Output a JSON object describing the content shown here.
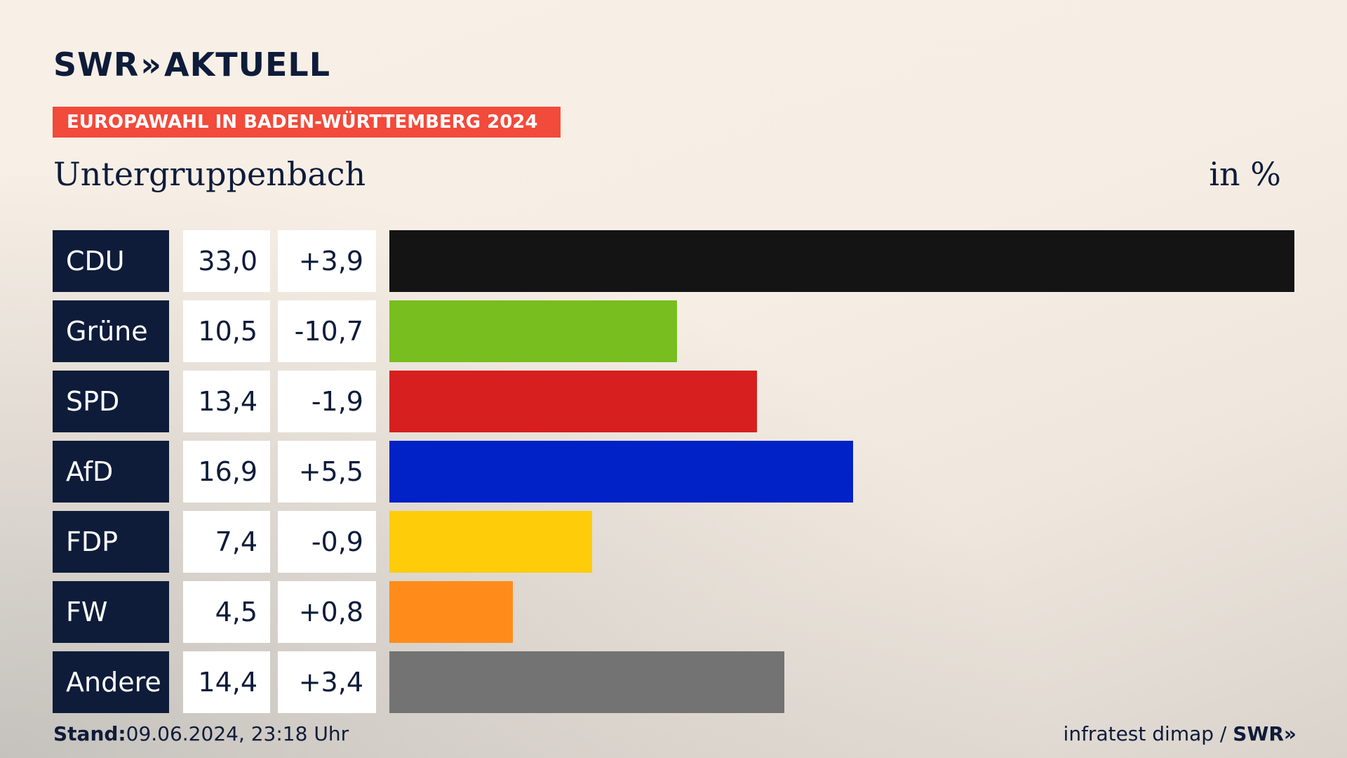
{
  "brand": {
    "name": "SWR",
    "arrows": "»",
    "product": "AKTUELL"
  },
  "banner": "EUROPAWAHL IN BADEN-WÜRTTEMBERG 2024",
  "place": "Untergruppenbach",
  "unit": "in %",
  "footer": {
    "stand_label": "Stand:",
    "stand_value": "09.06.2024, 23:18 Uhr",
    "source": "infratest dimap /",
    "source_brand": "SWR",
    "source_arrows": "»"
  },
  "colors": {
    "accent": "#f24a3b",
    "label_bg": "#0e1c3a"
  },
  "chart_data": {
    "type": "bar",
    "orientation": "horizontal",
    "title": "Untergruppenbach",
    "unit": "in %",
    "categories": [
      "CDU",
      "Grüne",
      "SPD",
      "AfD",
      "FDP",
      "FW",
      "Andere"
    ],
    "values": [
      33.0,
      10.5,
      13.4,
      16.9,
      7.4,
      4.5,
      14.4
    ],
    "value_labels": [
      "33,0",
      "10,5",
      "13,4",
      "16,9",
      "7,4",
      "4,5",
      "14,4"
    ],
    "diffs": [
      3.9,
      -10.7,
      -1.9,
      5.5,
      -0.9,
      0.8,
      3.4
    ],
    "diff_labels": [
      "+3,9",
      "-10,7",
      "-1,9",
      "+5,5",
      "-0,9",
      "+0,8",
      "+3,4"
    ],
    "bar_colors": [
      "#141414",
      "#78be1e",
      "#d71f1f",
      "#0022c6",
      "#ffcc0a",
      "#ff8c1a",
      "#737373"
    ],
    "xlim": [
      0,
      33.0
    ],
    "grid": false,
    "legend": "none"
  }
}
